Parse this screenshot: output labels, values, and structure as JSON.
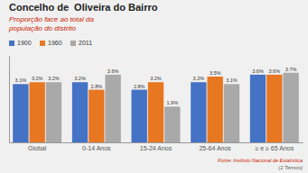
{
  "chart_data": {
    "type": "bar",
    "title": "Concelho de  Oliveira do Bairro",
    "subtitle": "Proporção face ao total da\npopulação do distrito",
    "categories": [
      "Global",
      "0-14 Anos",
      "15-24 Anos",
      "25-64 Anos",
      "≥ e ≥ 65 Anos"
    ],
    "series": [
      {
        "name": "1900",
        "color": "#4472C4",
        "values": [
          3.1,
          3.2,
          2.8,
          3.2,
          3.6
        ],
        "value_labels": [
          "3.1%",
          "3.2%",
          "2.8%",
          "3.2%",
          "3.6%"
        ]
      },
      {
        "name": "1960",
        "color": "#E87722",
        "values": [
          3.2,
          2.8,
          3.2,
          3.5,
          3.6
        ],
        "value_labels": [
          "3.2%",
          "2.8%",
          "3.2%",
          "3.5%",
          "3.6%"
        ]
      },
      {
        "name": "2011",
        "color": "#A9A9A9",
        "values": [
          3.2,
          3.6,
          1.9,
          3.1,
          3.7
        ],
        "value_labels": [
          "3.2%",
          "3.6%",
          "1.9%",
          "3.1%",
          "3.7%"
        ]
      }
    ],
    "ylim": [
      0,
      4.6
    ],
    "data_labels": true,
    "tick_labels": "x",
    "grid": false,
    "annotations": [
      "Fonte: Instituto Nacional de Estatística",
      "(2 Termos)"
    ]
  }
}
